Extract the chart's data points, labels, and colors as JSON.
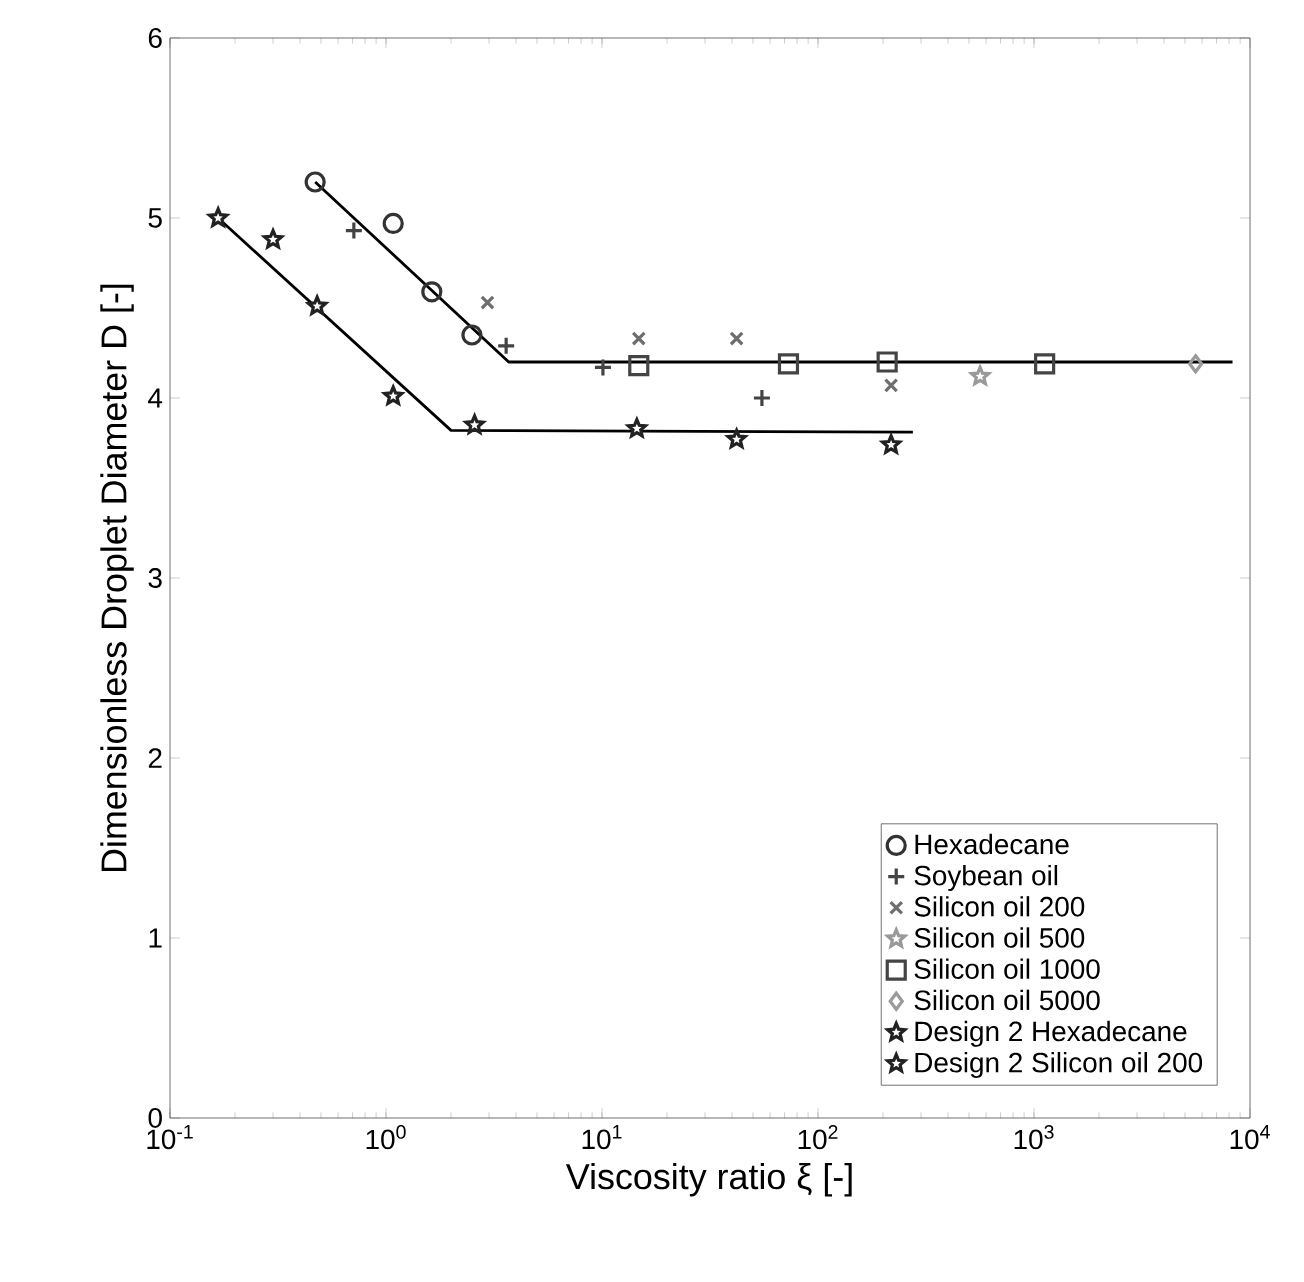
{
  "chart_data": {
    "type": "scatter",
    "xlabel": "Viscosity ratio ξ [-]",
    "ylabel": "Dimensionless Droplet Diameter D [-]",
    "log": "x",
    "legend": "bottom right",
    "xlim": [
      0.1,
      10000
    ],
    "ylim": [
      0,
      6
    ],
    "xticks": [
      {
        "value": 0.1,
        "label": "10$^{-1}$"
      },
      {
        "value": 1,
        "label": "10$^{0}$"
      },
      {
        "value": 10,
        "label": "10$^{1}$"
      },
      {
        "value": 100,
        "label": "10$^{2}$"
      },
      {
        "value": 1000,
        "label": "10$^{3}$"
      },
      {
        "value": 10000,
        "label": "10$^{4}$"
      }
    ],
    "yticks": [
      0,
      1,
      2,
      3,
      4,
      5,
      6
    ],
    "series": [
      {
        "name": "Hexadecane",
        "color": "#333333",
        "marker": "circle",
        "x": [
          0.47,
          1.08,
          1.63,
          2.5
        ],
        "values": [
          5.2,
          4.97,
          4.59,
          4.35
        ]
      },
      {
        "name": "Soybean oil",
        "color": "#444444",
        "marker": "plus",
        "x": [
          0.71,
          3.6,
          10.1,
          55
        ],
        "values": [
          4.93,
          4.29,
          4.17,
          4.0
        ]
      },
      {
        "name": "Silicon oil 200",
        "color": "#6e6e6e",
        "marker": "cross",
        "x": [
          2.95,
          14.8,
          42,
          218
        ],
        "values": [
          4.53,
          4.33,
          4.33,
          4.07
        ]
      },
      {
        "name": "Silicon oil 500",
        "color": "#999999",
        "marker": "star",
        "x": [
          563
        ],
        "values": [
          4.12
        ]
      },
      {
        "name": "Silicon oil 1000",
        "color": "#444444",
        "marker": "square",
        "x": [
          14.8,
          73,
          209,
          1120
        ],
        "values": [
          4.18,
          4.19,
          4.2,
          4.19
        ]
      },
      {
        "name": "Silicon oil 5000",
        "color": "#9a9a9a",
        "marker": "diamond",
        "x": [
          5600
        ],
        "values": [
          4.19
        ]
      },
      {
        "name": "Design 2 Hexadecane",
        "color": "#222222",
        "marker": "star",
        "x": [
          0.167,
          0.3,
          0.48,
          1.08,
          2.57
        ],
        "values": [
          5.0,
          4.88,
          4.51,
          4.01,
          3.85
        ]
      },
      {
        "name": "Design 2 Silicon oil 200",
        "color": "#222222",
        "marker": "star",
        "x": [
          14.5,
          42,
          218
        ],
        "values": [
          3.83,
          3.77,
          3.74
        ]
      },
      {
        "type": "line",
        "color": "#000000",
        "x": [
          0.47,
          3.7,
          8300
        ],
        "values": [
          5.2,
          4.2,
          4.2
        ]
      },
      {
        "type": "line",
        "color": "#000000",
        "x": [
          0.167,
          2.0,
          275
        ],
        "values": [
          5.0,
          3.82,
          3.81
        ]
      }
    ]
  }
}
